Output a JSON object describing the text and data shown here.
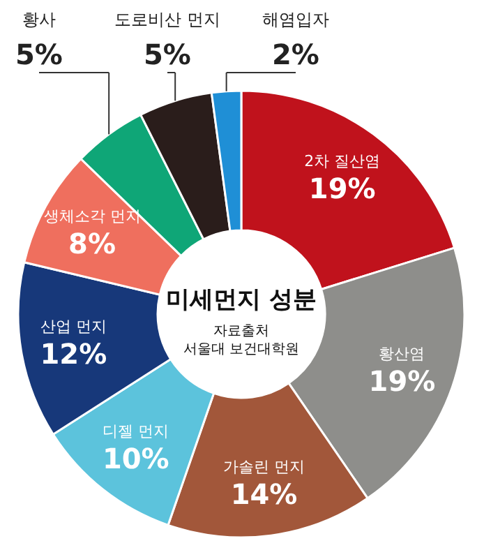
{
  "chart_data": {
    "type": "donut",
    "title": "미세먼지 성분",
    "annotations": [
      "자료출처",
      "서울대 보건대학원"
    ],
    "categories": [
      "2차 질산염",
      "황산염",
      "가솔린 먼지",
      "디젤 먼지",
      "산업 먼지",
      "생체소각 먼지",
      "황사",
      "도로비산 먼지",
      "해염입자"
    ],
    "values": [
      19,
      19,
      14,
      10,
      12,
      8,
      5,
      5,
      2
    ],
    "value_labels": [
      "19%",
      "19%",
      "14%",
      "10%",
      "12%",
      "8%",
      "5%",
      "5%",
      "2%"
    ],
    "colors": [
      "#c0121c",
      "#8e8e8b",
      "#a2573a",
      "#5cc3dc",
      "#17387a",
      "#ef6f5e",
      "#0fa677",
      "#2a1d1b",
      "#1f8fd6"
    ]
  }
}
